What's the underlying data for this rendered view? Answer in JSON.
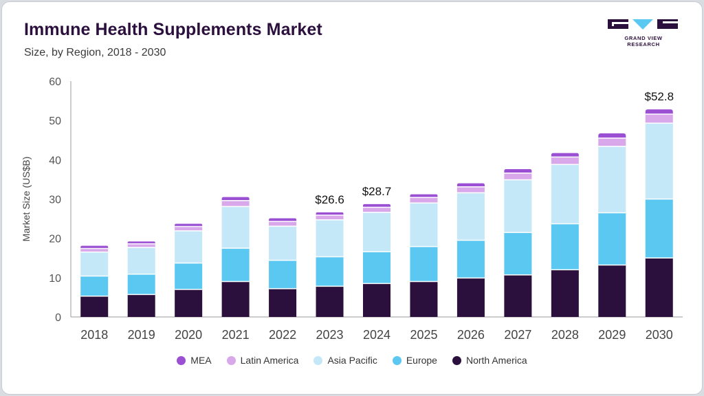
{
  "header": {
    "title": "Immune Health Supplements Market",
    "subtitle": "Size, by Region, 2018 - 2030"
  },
  "logo": {
    "text": "GRAND VIEW RESEARCH"
  },
  "chart_data": {
    "type": "bar",
    "stacked": true,
    "categories": [
      "2018",
      "2019",
      "2020",
      "2021",
      "2022",
      "2023",
      "2024",
      "2025",
      "2026",
      "2027",
      "2028",
      "2029",
      "2030"
    ],
    "series": [
      {
        "name": "North America",
        "color": "#2b0f3c",
        "values": [
          5.3,
          5.7,
          7.0,
          9.0,
          7.2,
          7.8,
          8.5,
          9.0,
          9.9,
          10.7,
          12.0,
          13.2,
          15.0
        ]
      },
      {
        "name": "Europe",
        "color": "#5bc8f2",
        "values": [
          5.1,
          5.2,
          6.7,
          8.5,
          7.2,
          7.5,
          8.1,
          8.9,
          9.6,
          10.8,
          11.7,
          13.3,
          15.0
        ]
      },
      {
        "name": "Asia Pacific",
        "color": "#c4e8f8",
        "values": [
          6.1,
          6.8,
          8.2,
          10.6,
          8.7,
          9.4,
          10.0,
          11.1,
          12.1,
          13.4,
          15.1,
          16.9,
          19.3
        ]
      },
      {
        "name": "Latin America",
        "color": "#d8a8ea",
        "values": [
          0.9,
          0.9,
          1.1,
          1.5,
          1.2,
          1.2,
          1.3,
          1.4,
          1.5,
          1.7,
          1.9,
          2.1,
          2.3
        ]
      },
      {
        "name": "MEA",
        "color": "#9b4fd2",
        "values": [
          0.7,
          0.6,
          0.7,
          0.9,
          0.8,
          0.7,
          0.8,
          0.8,
          0.9,
          1.0,
          1.0,
          1.2,
          1.2
        ]
      }
    ],
    "legend_order": [
      "MEA",
      "Latin America",
      "Asia Pacific",
      "Europe",
      "North America"
    ],
    "annotations": [
      {
        "category": "2023",
        "label": "$26.6"
      },
      {
        "category": "2024",
        "label": "$28.7"
      },
      {
        "category": "2030",
        "label": "$52.8"
      }
    ],
    "ylabel": "Market Size (US$B)",
    "xlabel": "",
    "ylim": [
      0,
      60
    ],
    "yticks": [
      0,
      10,
      20,
      30,
      40,
      50,
      60
    ],
    "grid": false,
    "legend_position": "bottom"
  }
}
